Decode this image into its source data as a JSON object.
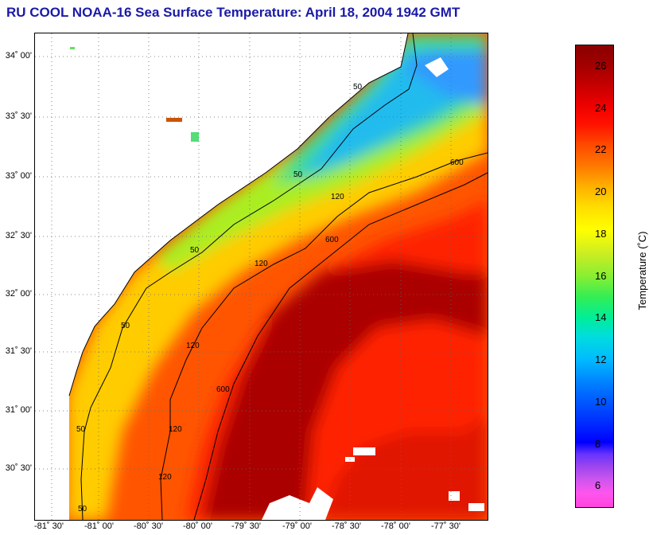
{
  "title": "RU COOL  NOAA-16  Sea Surface Temperature:  April 18, 2004 1942 GMT",
  "map": {
    "lat_labels": [
      "34˚ 00'",
      "33˚ 30'",
      "33˚ 00'",
      "32˚ 30'",
      "32˚ 00'",
      "31˚ 30'",
      "31˚ 00'",
      "30˚ 30'"
    ],
    "lon_labels": [
      "-81˚ 30'",
      "-81˚ 00'",
      "-80˚ 30'",
      "-80˚ 00'",
      "-79˚ 30'",
      "-79˚ 00'",
      "-78˚ 30'",
      "-78˚ 00'",
      "-77˚ 30'"
    ],
    "contour_labels": [
      "50",
      "50",
      "50",
      "50",
      "50",
      "50",
      "120",
      "120",
      "120",
      "120",
      "120",
      "600",
      "600",
      "600"
    ],
    "land_color": "#ffffff",
    "contour_color": "#000000",
    "grid_style": "dotted"
  },
  "colorbar": {
    "label": "Temperature (˚C)",
    "ticks": [
      "26",
      "24",
      "22",
      "20",
      "18",
      "16",
      "14",
      "12",
      "10",
      "8",
      "6"
    ],
    "min": 5,
    "max": 27
  }
}
